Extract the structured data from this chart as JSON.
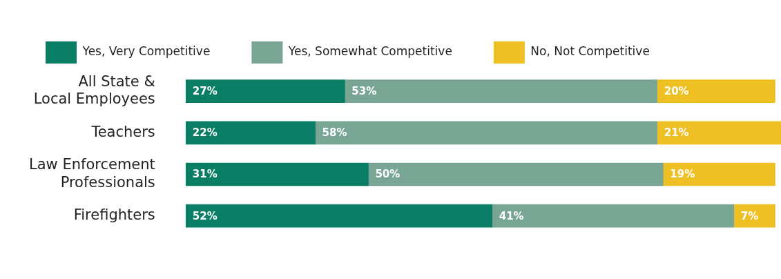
{
  "chart_data": {
    "type": "bar",
    "orientation": "horizontal",
    "stacked": true,
    "categories": [
      "All State & Local Employees",
      "Teachers",
      "Law Enforcement Professionals",
      "Firefighters"
    ],
    "series": [
      {
        "name": "Yes, Very Competitive",
        "color": "#0a7d65",
        "values": [
          27,
          22,
          31,
          52
        ],
        "value_labels": [
          "27%",
          "22%",
          "31%",
          "52%"
        ]
      },
      {
        "name": "Yes, Somewhat Competitive",
        "color": "#78a594",
        "values": [
          53,
          58,
          50,
          41
        ],
        "value_labels": [
          "53%",
          "58%",
          "50%",
          "41%"
        ]
      },
      {
        "name": "No, Not Competitive",
        "color": "#eec023",
        "values": [
          20,
          21,
          19,
          7
        ],
        "value_labels": [
          "20%",
          "21%",
          "19%",
          "7%"
        ]
      }
    ],
    "xlim": [
      0,
      101
    ],
    "tick_labels": "y",
    "legend": "top left"
  }
}
